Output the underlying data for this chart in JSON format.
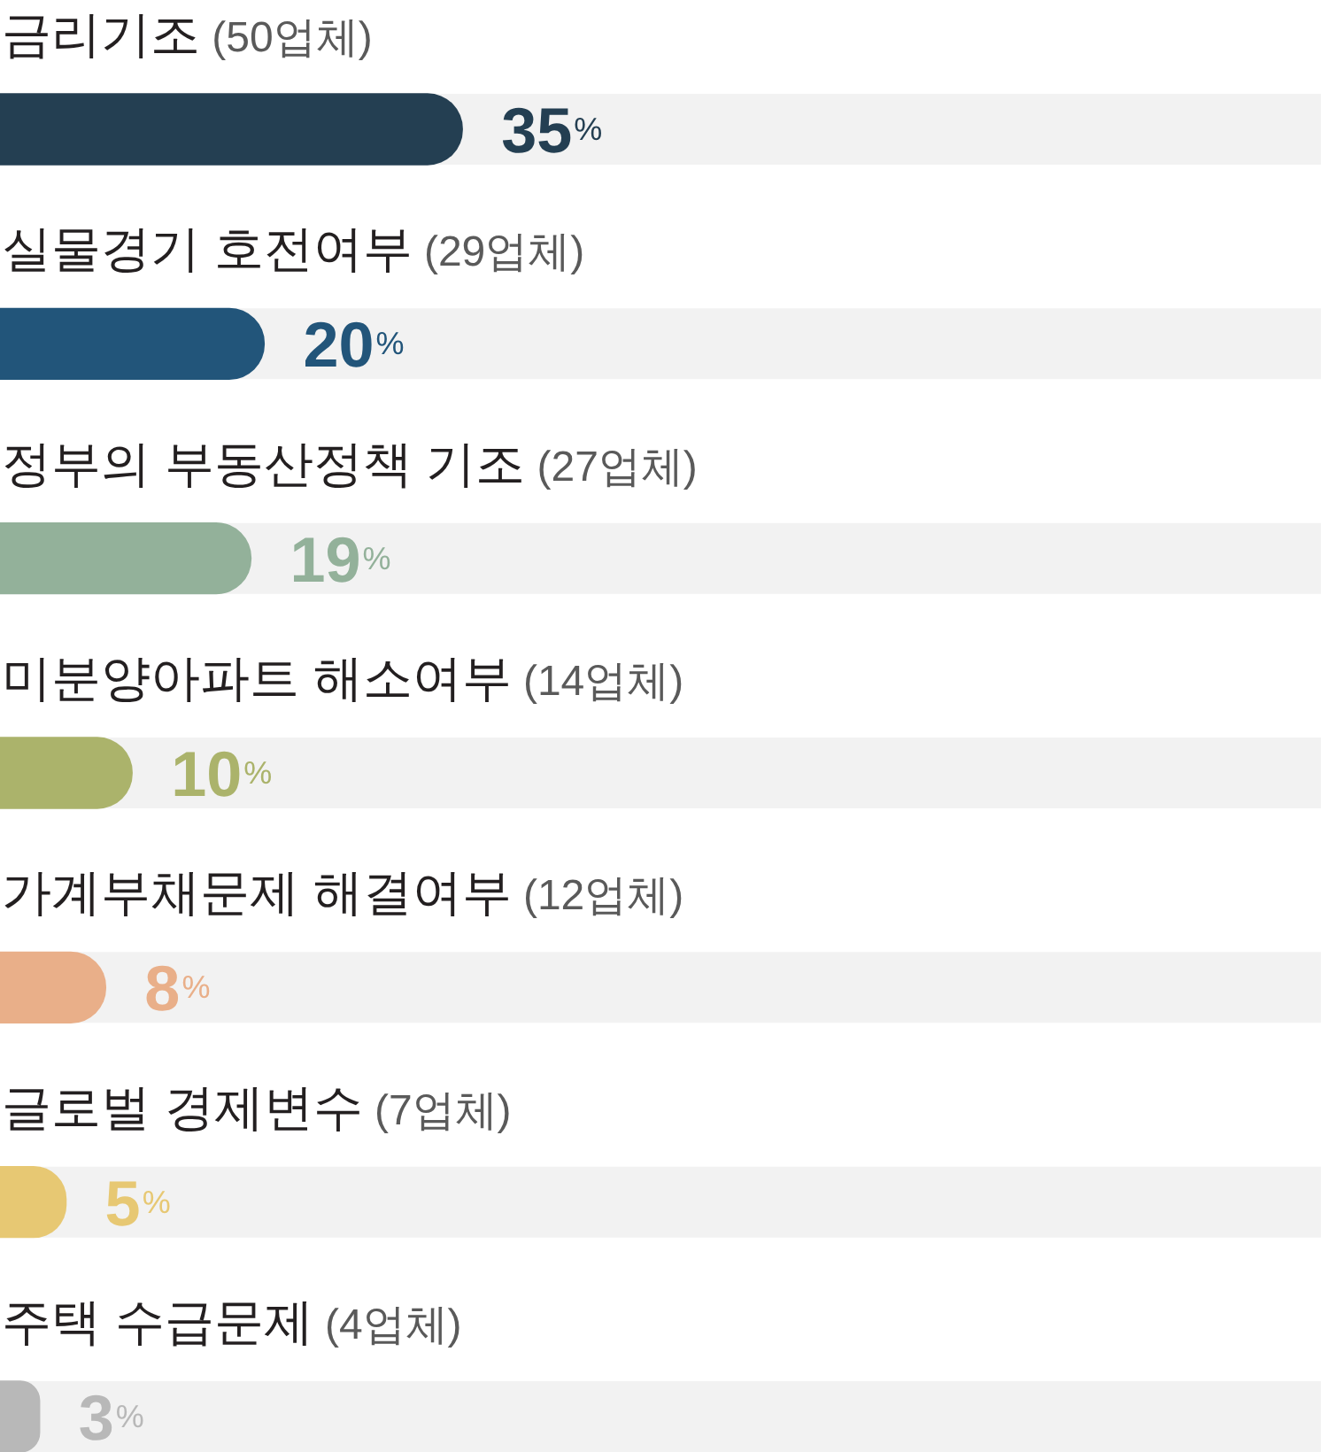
{
  "chart_data": {
    "type": "bar",
    "orientation": "horizontal",
    "categories": [
      "금리기조 (50업체)",
      "실물경기 호전여부 (29업체)",
      "정부의 부동산정책 기조 (27업체)",
      "미분양아파트 해소여부 (14업체)",
      "가계부채문제 해결여부 (12업체)",
      "글로벌 경제변수 (7업체)",
      "주택 수급문제 (4업체)"
    ],
    "values": [
      35,
      20,
      19,
      10,
      8,
      5,
      3
    ],
    "colors": [
      "#243f52",
      "#22557a",
      "#93b19a",
      "#abb36b",
      "#e9af89",
      "#e7c873",
      "#b8b8b8"
    ],
    "value_labels": [
      "35%",
      "20%",
      "19%",
      "10%",
      "8%",
      "5%",
      "3%"
    ],
    "xlim": [
      0,
      100
    ],
    "tick_labels": "y"
  }
}
